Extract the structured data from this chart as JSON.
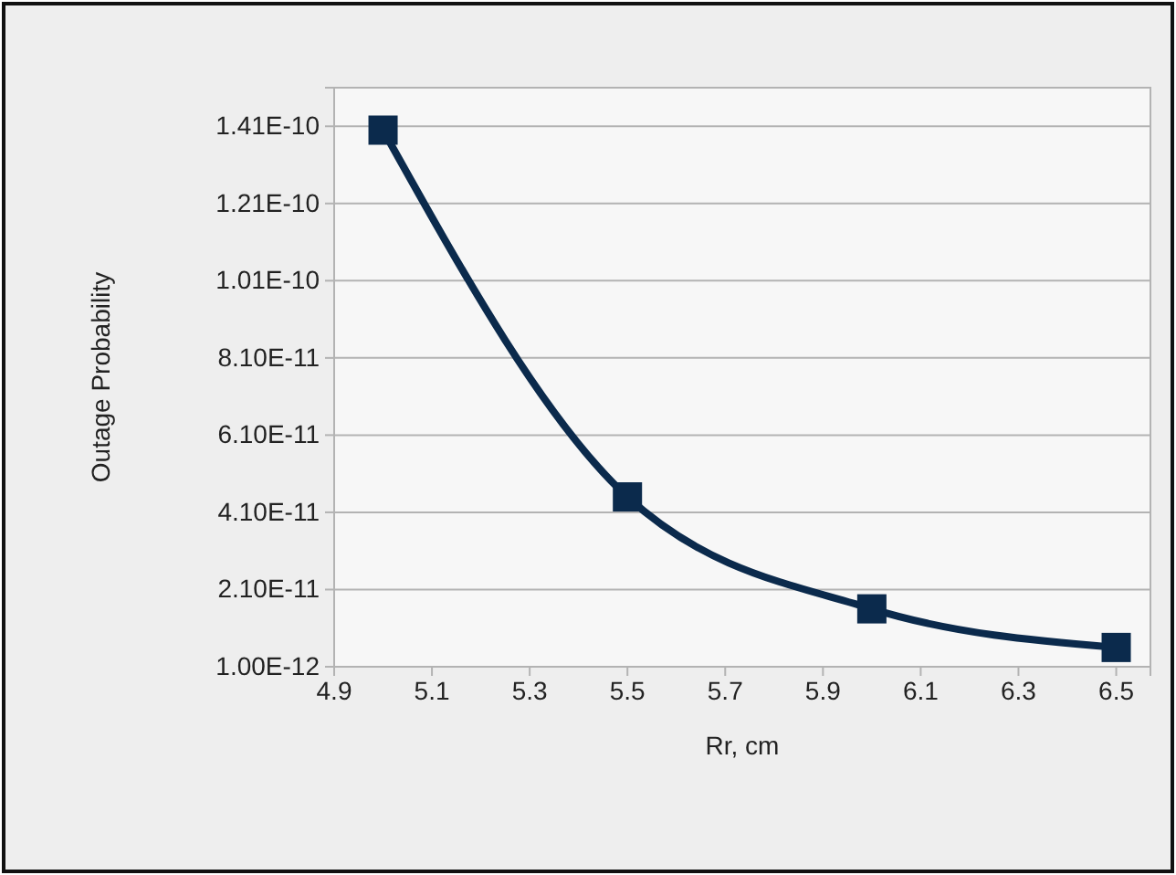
{
  "chart_data": {
    "type": "line",
    "xlabel": "Rr, cm",
    "ylabel": "Outage Probability",
    "x": [
      5,
      5.5,
      6,
      6.5
    ],
    "series": [
      {
        "color": "#0b2a4c",
        "values": [
          1.4e-10,
          4.5e-11,
          1.6e-11,
          6e-12
        ]
      }
    ],
    "xlim": [
      4.9,
      6.57
    ],
    "xticks": [
      4.9,
      5.1,
      5.3,
      5.5,
      5.7,
      5.9,
      6.1,
      6.3,
      6.5
    ],
    "ylim": [
      1e-12,
      1.51e-10
    ],
    "yticks": [
      {
        "value": 1e-12,
        "label": "1.00E-12"
      },
      {
        "value": 2.1e-11,
        "label": "2.10E-11"
      },
      {
        "value": 4.1e-11,
        "label": "4.10E-11"
      },
      {
        "value": 6.1e-11,
        "label": "6.10E-11"
      },
      {
        "value": 8.1e-11,
        "label": "8.10E-11"
      },
      {
        "value": 1.01e-10,
        "label": "1.01E-10"
      },
      {
        "value": 1.21e-10,
        "label": "1.21E-10"
      },
      {
        "value": 1.41e-10,
        "label": "1.41E-10"
      }
    ],
    "grid": "y",
    "marker": "square",
    "line_style": "solid"
  }
}
